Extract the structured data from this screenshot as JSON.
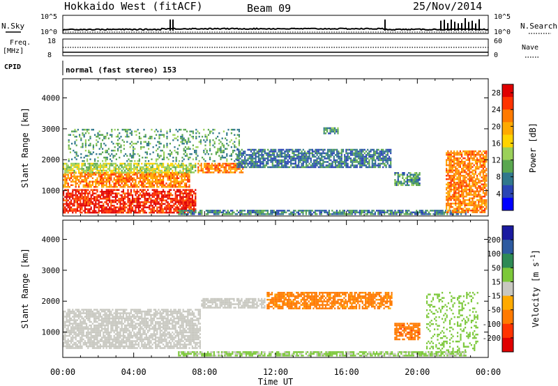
{
  "header": {
    "radar": "Hokkaido West (fitACF)",
    "beam": "Beam 09",
    "date": "25/Nov/2014"
  },
  "status": {
    "nsky_label": "N.Sky",
    "nsearch_label": "N.Search",
    "noise_ticks": [
      "10^5",
      "10^0"
    ],
    "freq_label": "Freq.",
    "freq_unit": "[MHz]",
    "freq_ticks": [
      "18",
      "8"
    ],
    "nave_label": "Nave",
    "nave_ticks": [
      "60",
      "0"
    ],
    "cpid_label": "CPID",
    "cpid_value": "normal (fast stereo) 153"
  },
  "chart_data": [
    {
      "type": "heatmap",
      "title": "Power",
      "xlabel": "",
      "ylabel": "Slant Range [km]",
      "x_ticks": [
        "00:00",
        "04:00",
        "08:00",
        "12:00",
        "16:00",
        "20:00",
        "00:00"
      ],
      "xlim_hours": [
        0,
        24
      ],
      "y_ticks": [
        1000,
        2000,
        3000,
        4000
      ],
      "ylim_km": [
        180,
        4620
      ],
      "colorbar": {
        "label": "Power [dB]",
        "ticks": [
          4,
          8,
          12,
          16,
          20,
          24,
          28
        ],
        "range": [
          0,
          30
        ],
        "colors": [
          "#0000ff",
          "#2a45b5",
          "#31788c",
          "#5aa74f",
          "#9bd15a",
          "#ffd400",
          "#ffaa00",
          "#ff7a00",
          "#ff3300",
          "#e00000"
        ]
      },
      "regions": [
        {
          "name": "near range E-region",
          "t_start": 0.0,
          "t_end": 7.6,
          "r_min": 220,
          "r_max": 1050,
          "level": 27
        },
        {
          "name": "near range band",
          "t_start": 0.0,
          "t_end": 7.2,
          "r_min": 1050,
          "r_max": 1600,
          "level": 22
        },
        {
          "name": "upper band",
          "t_start": 0.0,
          "t_end": 7.6,
          "r_min": 1550,
          "r_max": 1900,
          "level": 14
        },
        {
          "name": "morning feature",
          "t_start": 7.6,
          "t_end": 10.2,
          "r_min": 1550,
          "r_max": 1900,
          "level": 22
        },
        {
          "name": "sparse echoes",
          "t_start": 0.3,
          "t_end": 10.0,
          "r_min": 1900,
          "r_max": 3000,
          "level": 10
        },
        {
          "name": "daytime F-region",
          "t_start": 9.8,
          "t_end": 18.6,
          "r_min": 1700,
          "r_max": 2350,
          "level": 7
        },
        {
          "name": "daytime patch",
          "t_start": 14.7,
          "t_end": 15.6,
          "r_min": 2800,
          "r_max": 3050,
          "level": 9
        },
        {
          "name": "ground scatter",
          "t_start": 6.5,
          "t_end": 22.8,
          "r_min": 200,
          "r_max": 380,
          "level": 8
        },
        {
          "name": "slanted feature",
          "t_start": 18.7,
          "t_end": 20.2,
          "r_min": 1100,
          "r_max": 1600,
          "level": 9
        },
        {
          "name": "evening E-region",
          "t_start": 21.6,
          "t_end": 24.0,
          "r_min": 250,
          "r_max": 2300,
          "level": 22
        }
      ]
    },
    {
      "type": "heatmap",
      "title": "Velocity",
      "xlabel": "Time UT",
      "ylabel": "Slant Range [km]",
      "x_ticks": [
        "00:00",
        "04:00",
        "08:00",
        "12:00",
        "16:00",
        "20:00",
        "00:00"
      ],
      "xlim_hours": [
        0,
        24
      ],
      "y_ticks": [
        1000,
        2000,
        3000,
        4000
      ],
      "ylim_km": [
        180,
        4620
      ],
      "colorbar": {
        "label": "Velocity [m s^-1]",
        "ticks": [
          200,
          100,
          50,
          15,
          -15,
          -50,
          -100,
          -200
        ],
        "colors": [
          "#1a1aa0",
          "#2d5aa0",
          "#2e8a55",
          "#7cc83a",
          "#c8c8c0",
          "#ffaa00",
          "#ff7a00",
          "#ff3300",
          "#e00000"
        ]
      },
      "regions": [
        {
          "name": "ground scatter night",
          "t_start": 0.0,
          "t_end": 7.8,
          "r_min": 400,
          "r_max": 1750,
          "level": 0
        },
        {
          "name": "morning transition",
          "t_start": 7.8,
          "t_end": 11.5,
          "r_min": 1750,
          "r_max": 2100,
          "level": 0
        },
        {
          "name": "daytime westward flow",
          "t_start": 11.5,
          "t_end": 18.6,
          "r_min": 1700,
          "r_max": 2300,
          "level": -60
        },
        {
          "name": "slanted feature",
          "t_start": 18.7,
          "t_end": 20.2,
          "r_min": 700,
          "r_max": 1300,
          "level": -90
        },
        {
          "name": "evening eastward flow",
          "t_start": 20.5,
          "t_end": 23.5,
          "r_min": 300,
          "r_max": 2300,
          "level": 30
        },
        {
          "name": "near ground scatter",
          "t_start": 6.5,
          "t_end": 22.8,
          "r_min": 200,
          "r_max": 380,
          "level": 20
        }
      ]
    }
  ]
}
